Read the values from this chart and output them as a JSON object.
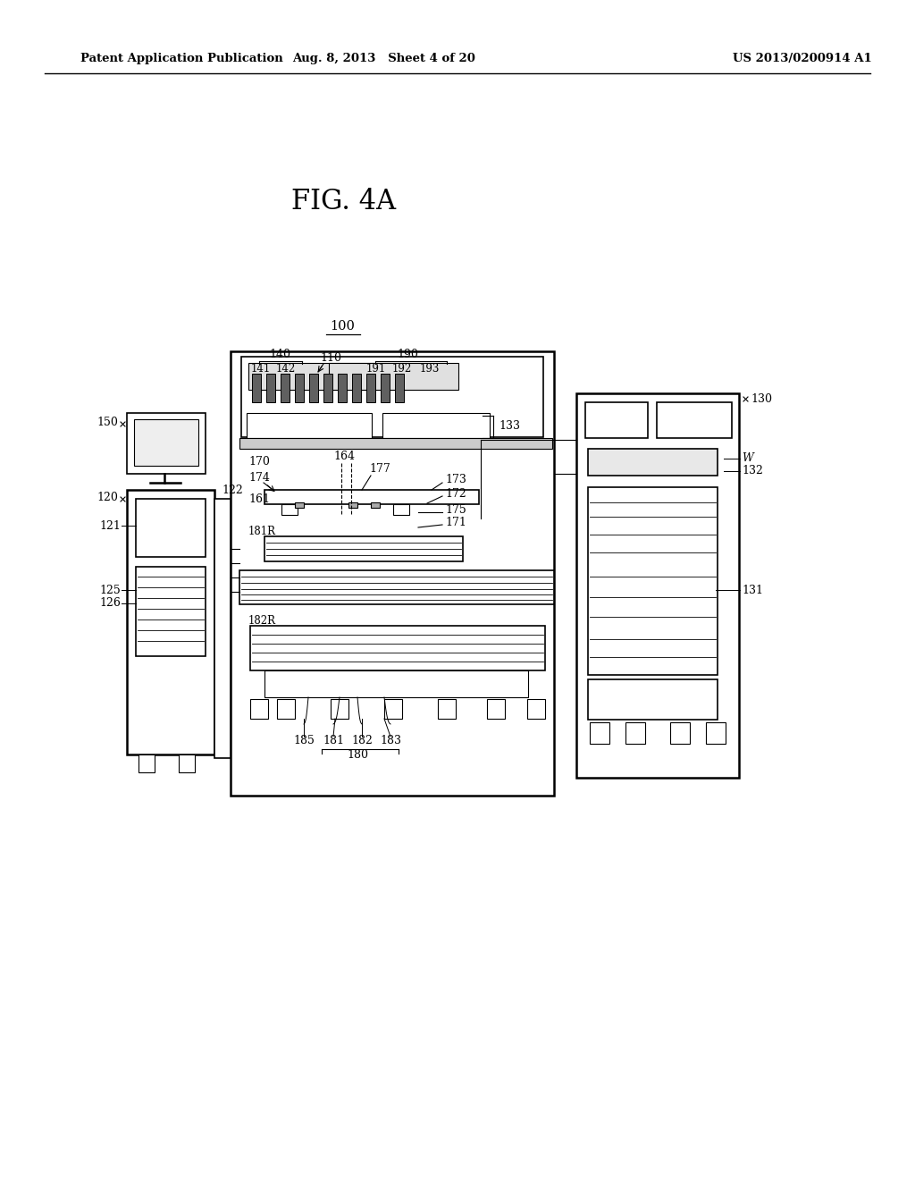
{
  "bg_color": "#ffffff",
  "text_color": "#000000",
  "header_left": "Patent Application Publication",
  "header_mid": "Aug. 8, 2013   Sheet 4 of 20",
  "header_right": "US 2013/0200914 A1",
  "fig_label": "FIG. 4A"
}
